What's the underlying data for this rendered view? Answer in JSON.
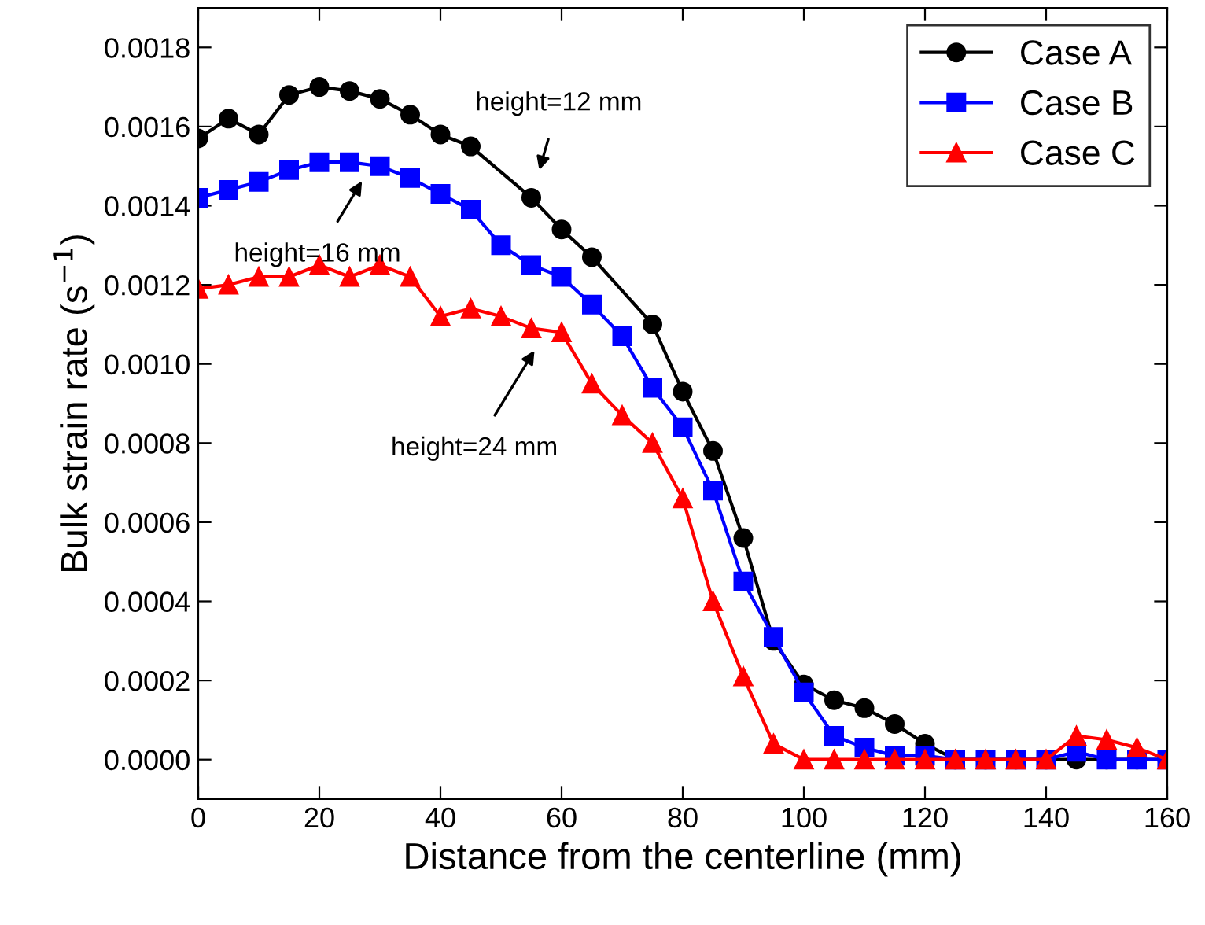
{
  "chart_data": {
    "type": "line",
    "xlabel": "Distance from the centerline (mm)",
    "ylabel": "Bulk strain rate (s$^{−1}$)",
    "xlim": [
      0,
      160
    ],
    "xticks": [
      0,
      20,
      40,
      60,
      80,
      100,
      120,
      140,
      160
    ],
    "ylim": [
      -0.0001,
      0.0019
    ],
    "yticks": [
      {
        "value": 0,
        "label": "0.0000"
      },
      {
        "value": 0.0002,
        "label": "0.0002"
      },
      {
        "value": 0.0004,
        "label": "0.0004"
      },
      {
        "value": 0.0006,
        "label": "0.0006"
      },
      {
        "value": 0.0008,
        "label": "0.0008"
      },
      {
        "value": 0.001,
        "label": "0.0010"
      },
      {
        "value": 0.0012,
        "label": "0.0012"
      },
      {
        "value": 0.0014,
        "label": "0.0014"
      },
      {
        "value": 0.0016,
        "label": "0.0016"
      },
      {
        "value": 0.0018,
        "label": "0.0018"
      }
    ],
    "grid": false,
    "legend": "top right",
    "line_style": "solid",
    "series": [
      {
        "name": "Case A",
        "color": "#000000",
        "marker": "circle",
        "x": [
          0,
          5,
          10,
          15,
          20,
          25,
          30,
          35,
          40,
          45,
          55,
          60,
          65,
          75,
          80,
          85,
          90,
          95,
          100,
          105,
          110,
          115,
          120,
          125,
          130,
          135,
          140,
          145,
          150,
          155,
          160
        ],
        "values": [
          0.00157,
          0.00162,
          0.00158,
          0.00168,
          0.0017,
          0.00169,
          0.00167,
          0.00163,
          0.00158,
          0.00155,
          0.00142,
          0.00134,
          0.00127,
          0.0011,
          0.00093,
          0.00078,
          0.00056,
          0.0003,
          0.00019,
          0.00015,
          0.00013,
          9e-05,
          4e-05,
          0,
          0,
          0,
          0,
          0,
          0,
          0,
          0
        ]
      },
      {
        "name": "Case B",
        "color": "#0000ff",
        "marker": "square",
        "x": [
          0,
          5,
          10,
          15,
          20,
          25,
          30,
          35,
          40,
          45,
          50,
          55,
          60,
          65,
          70,
          75,
          80,
          85,
          90,
          95,
          100,
          105,
          110,
          115,
          120,
          125,
          130,
          135,
          140,
          145,
          150,
          155,
          160
        ],
        "values": [
          0.00142,
          0.00144,
          0.00146,
          0.00149,
          0.00151,
          0.00151,
          0.0015,
          0.00147,
          0.00143,
          0.00139,
          0.0013,
          0.00125,
          0.00122,
          0.00115,
          0.00107,
          0.00094,
          0.00084,
          0.00068,
          0.00045,
          0.00031,
          0.00017,
          6e-05,
          3e-05,
          1e-05,
          1e-05,
          0,
          0,
          0,
          0,
          2e-05,
          0,
          0,
          0
        ]
      },
      {
        "name": "Case C",
        "color": "#ff0000",
        "marker": "triangle",
        "x": [
          0,
          5,
          10,
          15,
          20,
          25,
          30,
          35,
          40,
          45,
          50,
          55,
          60,
          65,
          70,
          75,
          80,
          85,
          90,
          95,
          100,
          105,
          110,
          115,
          120,
          125,
          130,
          135,
          140,
          145,
          150,
          155,
          160
        ],
        "values": [
          0.00119,
          0.0012,
          0.00122,
          0.00122,
          0.00125,
          0.00122,
          0.00125,
          0.00122,
          0.00112,
          0.00114,
          0.00112,
          0.00109,
          0.00108,
          0.00095,
          0.00087,
          0.0008,
          0.00066,
          0.0004,
          0.00021,
          4e-05,
          0,
          0,
          0,
          0,
          0,
          0,
          0,
          0,
          0,
          6e-05,
          5e-05,
          3e-05,
          0
        ]
      }
    ],
    "annotations": [
      "height=12 mm",
      "height=16 mm",
      "height=24 mm"
    ]
  }
}
